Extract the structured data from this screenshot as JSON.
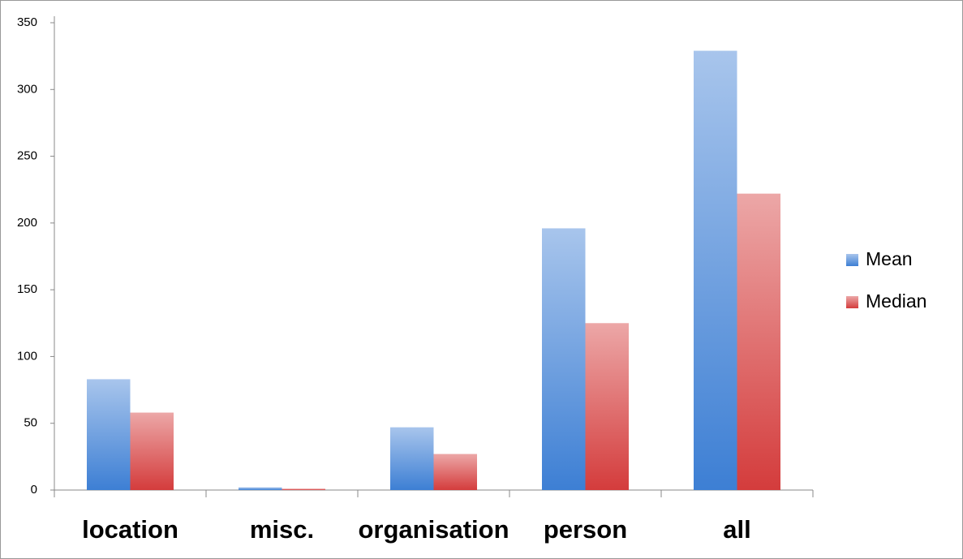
{
  "chart_data": {
    "type": "bar",
    "categories": [
      "location",
      "misc.",
      "organisation",
      "person",
      "all"
    ],
    "series": [
      {
        "name": "Mean",
        "color": "#3d7fd4",
        "values": [
          83,
          2,
          47,
          196,
          329
        ]
      },
      {
        "name": "Median",
        "color": "#d43c3c",
        "values": [
          58,
          1,
          27,
          125,
          222
        ]
      }
    ],
    "ylim": [
      0,
      350
    ],
    "yticks": [
      0,
      50,
      100,
      150,
      200,
      250,
      300,
      350
    ],
    "legend": "right"
  }
}
